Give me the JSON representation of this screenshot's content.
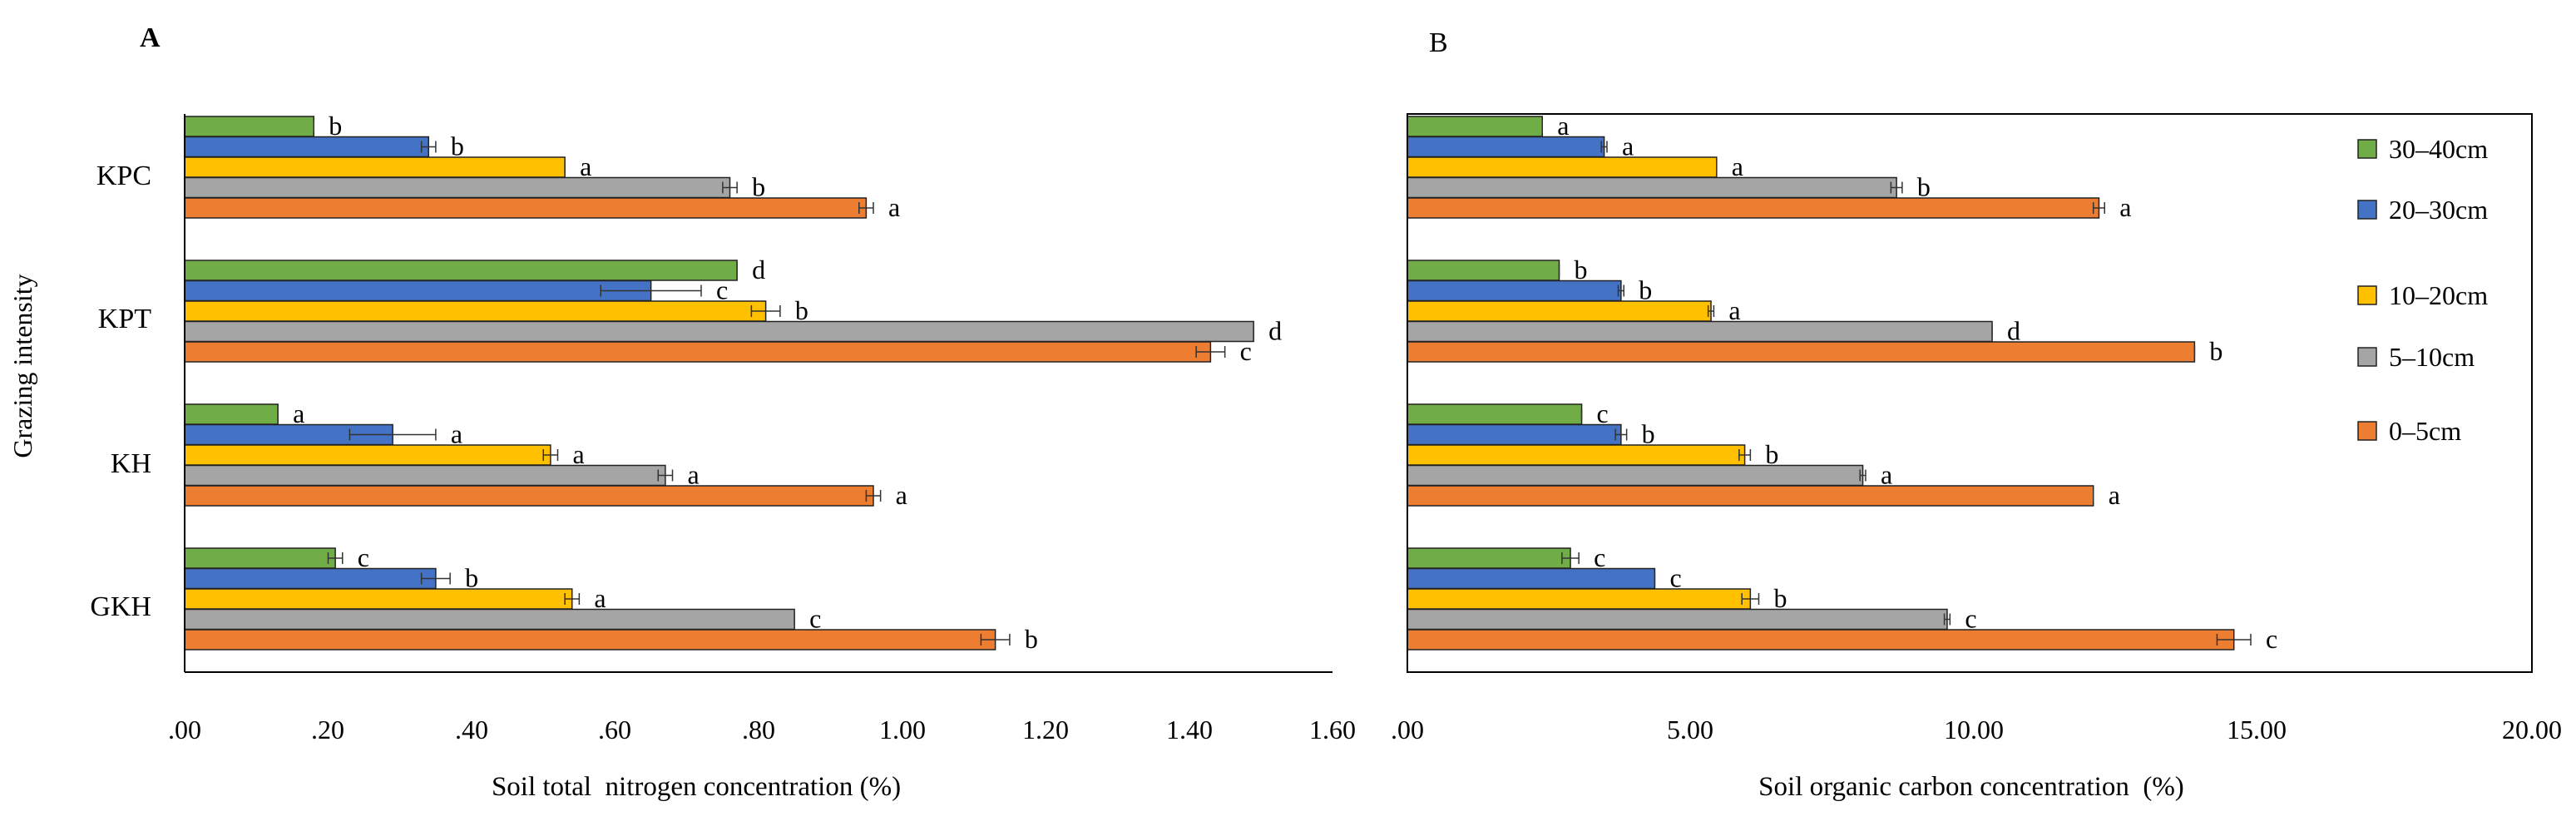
{
  "chart_data": [
    {
      "panel": "A",
      "type": "bar",
      "orientation": "horizontal",
      "title": "",
      "xlabel": "Soil total  nitrogen concentration (%)",
      "ylabel": "Grazing intensity",
      "xlim": [
        0,
        1.6
      ],
      "xticks": [
        ".00",
        ".20",
        ".40",
        ".60",
        ".80",
        "1.00",
        "1.20",
        "1.40",
        "1.60"
      ],
      "categories": [
        "KPC",
        "KPT",
        "KH",
        "GKH"
      ],
      "series": [
        {
          "name": "30–40cm",
          "values": [
            0.18,
            0.77,
            0.13,
            0.21
          ],
          "errors": [
            0.0,
            0.0,
            0.0,
            0.01
          ],
          "letters": [
            "b",
            "d",
            "a",
            "c"
          ]
        },
        {
          "name": "20–30cm",
          "values": [
            0.34,
            0.65,
            0.29,
            0.35
          ],
          "errors": [
            0.01,
            0.07,
            0.06,
            0.02
          ],
          "letters": [
            "b",
            "c",
            "a",
            "b"
          ]
        },
        {
          "name": "10–20cm",
          "values": [
            0.53,
            0.81,
            0.51,
            0.54
          ],
          "errors": [
            0.0,
            0.02,
            0.01,
            0.01
          ],
          "letters": [
            "a",
            "b",
            "a",
            "a"
          ]
        },
        {
          "name": "5–10cm",
          "values": [
            0.76,
            1.49,
            0.67,
            0.85
          ],
          "errors": [
            0.01,
            0.0,
            0.01,
            0.0
          ],
          "letters": [
            "b",
            "d",
            "a",
            "c"
          ]
        },
        {
          "name": "0–5cm",
          "values": [
            0.95,
            1.43,
            0.96,
            1.13
          ],
          "errors": [
            0.01,
            0.02,
            0.01,
            0.02
          ],
          "letters": [
            "a",
            "c",
            "a",
            "b"
          ]
        }
      ]
    },
    {
      "panel": "B",
      "type": "bar",
      "orientation": "horizontal",
      "title": "",
      "xlabel": "Soil organic carbon concentration  (%)",
      "ylabel": "",
      "xlim": [
        0,
        20
      ],
      "xticks": [
        ".00",
        "5.00",
        "10.00",
        "15.00",
        "20.00"
      ],
      "categories": [
        "KPC",
        "KPT",
        "KH",
        "GKH"
      ],
      "series": [
        {
          "name": "30–40cm",
          "values": [
            2.4,
            2.7,
            3.1,
            2.9
          ],
          "errors": [
            0.0,
            0.0,
            0.0,
            0.15
          ],
          "letters": [
            "a",
            "b",
            "c",
            "c"
          ]
        },
        {
          "name": "20–30cm",
          "values": [
            3.5,
            3.8,
            3.8,
            4.4
          ],
          "errors": [
            0.05,
            0.05,
            0.1,
            0.0
          ],
          "letters": [
            "a",
            "b",
            "b",
            "c"
          ]
        },
        {
          "name": "10–20cm",
          "values": [
            5.5,
            5.4,
            6.0,
            6.1
          ],
          "errors": [
            0.0,
            0.05,
            0.1,
            0.15
          ],
          "letters": [
            "a",
            "a",
            "b",
            "b"
          ]
        },
        {
          "name": "5–10cm",
          "values": [
            8.7,
            10.4,
            8.1,
            9.6
          ],
          "errors": [
            0.1,
            0.0,
            0.05,
            0.05
          ],
          "letters": [
            "b",
            "d",
            "a",
            "c"
          ]
        },
        {
          "name": "0–5cm",
          "values": [
            12.3,
            14.0,
            12.2,
            14.7
          ],
          "errors": [
            0.1,
            0.0,
            0.0,
            0.3
          ],
          "letters": [
            "a",
            "b",
            "a",
            "c"
          ]
        }
      ]
    }
  ],
  "legend": {
    "items": [
      "30–40cm",
      "20–30cm",
      "10–20cm",
      "5–10cm",
      "0–5cm"
    ],
    "placement": "right of panel B"
  },
  "colors": {
    "30–40cm": "#70ad47",
    "20–30cm": "#4472c4",
    "10–20cm": "#ffc000",
    "5–10cm": "#a5a5a5",
    "0–5cm": "#ed7d31"
  }
}
